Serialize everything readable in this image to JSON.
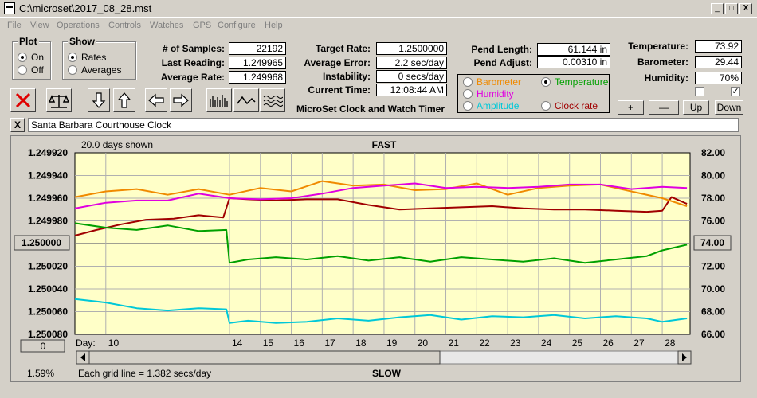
{
  "window": {
    "title": "C:\\microset\\2017_08_28.mst",
    "min": "_",
    "max": "□",
    "close": "X"
  },
  "menu": [
    "File",
    "View",
    "Operations",
    "Controls",
    "Watches",
    "GPS",
    "Configure",
    "Help"
  ],
  "plot": {
    "title": "Plot",
    "on": "On",
    "off": "Off"
  },
  "show": {
    "title": "Show",
    "rates": "Rates",
    "averages": "Averages"
  },
  "stats": {
    "samples_label": "# of Samples:",
    "samples": "22192",
    "last_label": "Last Reading:",
    "last": "1.249965",
    "avg_label": "Average Rate:",
    "avg": "1.249968",
    "target_label": "Target Rate:",
    "target": "1.2500000",
    "err_label": "Average Error:",
    "err": "2.2 sec/day",
    "inst_label": "Instability:",
    "inst": "0 secs/day",
    "time_label": "Current Time:",
    "time": "12:08:44 AM",
    "pendlen_label": "Pend Length:",
    "pendlen": "61.144 in",
    "pendadj_label": "Pend Adjust:",
    "pendadj": "0.00310 in",
    "temp_label": "Temperature:",
    "temp": "73.92",
    "baro_label": "Barometer:",
    "baro": "29.44",
    "hum_label": "Humidity:",
    "hum": "70%"
  },
  "app_title": "MicroSet Clock and Watch Timer",
  "legend": {
    "barometer": "Barometer",
    "temperature": "Temperature",
    "humidity": "Humidity",
    "amplitude": "Amplitude",
    "clockrate": "Clock rate",
    "colors": {
      "barometer": "#f08a00",
      "temperature": "#00a000",
      "humidity": "#e000e0",
      "amplitude": "#00c8d8",
      "clockrate": "#a00000"
    }
  },
  "scale_buttons": {
    "plus": "+",
    "minus": "—",
    "up": "Up",
    "down": "Down"
  },
  "clock_name": "Santa Barbara Courthouse Clock",
  "clear_label": "X",
  "chart": {
    "days_shown": "20.0 days shown",
    "fast": "FAST",
    "slow": "SLOW",
    "left_ticks": [
      "1.249920",
      "1.249940",
      "1.249960",
      "1.249980",
      "1.250000",
      "1.250020",
      "1.250040",
      "1.250060",
      "1.250080"
    ],
    "right_ticks": [
      "82.00",
      "80.00",
      "78.00",
      "76.00",
      "74.00",
      "72.00",
      "70.00",
      "68.00",
      "66.00"
    ],
    "left_center": "1.250000",
    "right_center": "74.00",
    "day_label": "Day:",
    "days": [
      "10",
      "14",
      "15",
      "16",
      "17",
      "18",
      "19",
      "20",
      "21",
      "22",
      "23",
      "24",
      "25",
      "26",
      "27",
      "28"
    ],
    "zero_btn": "0",
    "zoom_pct": "1.59%",
    "grid_note": "Each grid line = 1.382 secs/day"
  },
  "chart_data": {
    "type": "line",
    "title": "FAST",
    "xlabel": "Day:",
    "x_ticks": [
      10,
      14,
      15,
      16,
      17,
      18,
      19,
      20,
      21,
      22,
      23,
      24,
      25,
      26,
      27,
      28
    ],
    "xlim": [
      9.0,
      28.9
    ],
    "ylim_left": [
      1.24992,
      1.25008
    ],
    "ylim_right": [
      66.0,
      82.0
    ],
    "left_axis_inverted": true,
    "series": [
      {
        "name": "Clock rate",
        "axis": "left",
        "color": "#a00000",
        "x": [
          9.0,
          9.7,
          10.5,
          11.3,
          12.2,
          13.0,
          13.8,
          14.0,
          14.6,
          15.5,
          16.5,
          17.5,
          18.5,
          19.5,
          20.5,
          21.5,
          22.5,
          23.5,
          24.5,
          25.5,
          26.5,
          27.5,
          28.0,
          28.3,
          28.8
        ],
        "y": [
          1.249993,
          1.249988,
          1.249983,
          1.249979,
          1.249978,
          1.249975,
          1.249977,
          1.24996,
          1.249961,
          1.249962,
          1.249961,
          1.249961,
          1.249966,
          1.24997,
          1.249969,
          1.249968,
          1.249967,
          1.249969,
          1.24997,
          1.24997,
          1.249971,
          1.249972,
          1.249971,
          1.249959,
          1.249965
        ]
      },
      {
        "name": "Temperature",
        "axis": "right",
        "color": "#00a000",
        "x": [
          9.0,
          10.0,
          11.0,
          12.0,
          13.0,
          13.9,
          14.0,
          14.6,
          15.5,
          16.5,
          17.5,
          18.5,
          19.5,
          20.5,
          21.5,
          22.5,
          23.5,
          24.5,
          25.5,
          26.5,
          27.5,
          28.0,
          28.8
        ],
        "y": [
          75.8,
          75.4,
          75.2,
          75.6,
          75.1,
          75.2,
          72.3,
          72.6,
          72.8,
          72.6,
          72.9,
          72.5,
          72.8,
          72.4,
          72.8,
          72.6,
          72.4,
          72.7,
          72.3,
          72.6,
          72.9,
          73.4,
          73.9
        ]
      },
      {
        "name": "Barometer",
        "axis": "right",
        "color": "#f08a00",
        "x": [
          9.0,
          10.0,
          11.0,
          12.0,
          13.0,
          14.0,
          15.0,
          16.0,
          17.0,
          18.0,
          19.0,
          20.0,
          21.0,
          22.0,
          23.0,
          24.0,
          25.0,
          26.0,
          27.0,
          28.0,
          28.8
        ],
        "y": [
          78.1,
          78.6,
          78.8,
          78.3,
          78.8,
          78.3,
          78.9,
          78.6,
          79.5,
          79.1,
          79.2,
          78.7,
          78.8,
          79.3,
          78.3,
          78.9,
          79.1,
          79.2,
          78.6,
          78.0,
          77.3
        ]
      },
      {
        "name": "Humidity",
        "axis": "right",
        "color": "#e000e0",
        "x": [
          9.0,
          10.0,
          11.0,
          12.0,
          13.0,
          14.0,
          15.0,
          16.0,
          17.0,
          18.0,
          19.0,
          20.0,
          21.0,
          22.0,
          23.0,
          24.0,
          25.0,
          26.0,
          27.0,
          28.0,
          28.8
        ],
        "y": [
          77.1,
          77.6,
          77.8,
          77.8,
          78.4,
          78.0,
          77.9,
          78.0,
          78.4,
          78.9,
          79.1,
          79.3,
          78.9,
          79.0,
          78.9,
          79.0,
          79.2,
          79.2,
          78.8,
          79.0,
          78.9
        ]
      },
      {
        "name": "Amplitude",
        "axis": "right",
        "color": "#00c8d8",
        "x": [
          9.0,
          10.0,
          11.0,
          12.0,
          13.0,
          13.9,
          14.0,
          14.6,
          15.5,
          16.5,
          17.5,
          18.5,
          19.5,
          20.5,
          21.5,
          22.5,
          23.5,
          24.5,
          25.5,
          26.5,
          27.5,
          28.0,
          28.8
        ],
        "y": [
          69.1,
          68.8,
          68.3,
          68.1,
          68.3,
          68.2,
          67.0,
          67.2,
          67.0,
          67.1,
          67.4,
          67.2,
          67.5,
          67.7,
          67.3,
          67.6,
          67.5,
          67.7,
          67.4,
          67.6,
          67.4,
          67.1,
          67.4
        ]
      }
    ]
  }
}
